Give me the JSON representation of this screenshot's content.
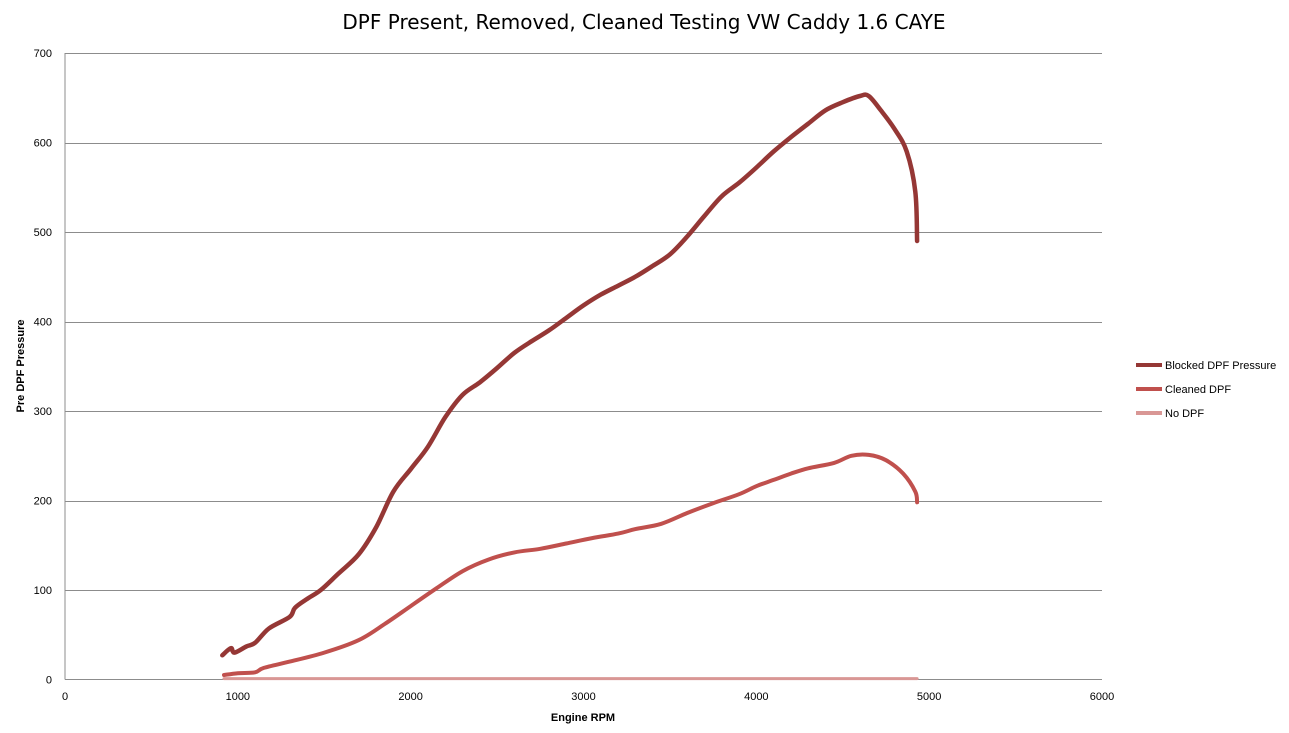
{
  "chart_data": {
    "type": "line",
    "title": "DPF Present, Removed, Cleaned Testing VW Caddy 1.6 CAYE",
    "xlabel": "Engine RPM",
    "ylabel": "Pre DPF Pressure",
    "xlim": [
      0,
      6000
    ],
    "ylim": [
      0,
      700
    ],
    "xticks": [
      0,
      1000,
      2000,
      3000,
      4000,
      5000,
      6000
    ],
    "yticks": [
      0,
      100,
      200,
      300,
      400,
      500,
      600,
      700
    ],
    "xtick_labels": [
      "0",
      "1000",
      "2000",
      "3000",
      "4000",
      "5000",
      "6000"
    ],
    "ytick_labels": [
      "0",
      "100",
      "200",
      "300",
      "400",
      "500",
      "600",
      "700"
    ],
    "grid": true,
    "legend_position": "right",
    "series": [
      {
        "name": "Blocked DPF Pressure",
        "color": "#953735",
        "points": [
          [
            910,
            27
          ],
          [
            960,
            35
          ],
          [
            980,
            30
          ],
          [
            1050,
            37
          ],
          [
            1100,
            41
          ],
          [
            1180,
            57
          ],
          [
            1300,
            70
          ],
          [
            1330,
            80
          ],
          [
            1400,
            90
          ],
          [
            1480,
            100
          ],
          [
            1580,
            118
          ],
          [
            1700,
            140
          ],
          [
            1800,
            170
          ],
          [
            1900,
            210
          ],
          [
            2000,
            235
          ],
          [
            2100,
            260
          ],
          [
            2200,
            293
          ],
          [
            2300,
            318
          ],
          [
            2400,
            332
          ],
          [
            2500,
            348
          ],
          [
            2600,
            365
          ],
          [
            2700,
            378
          ],
          [
            2800,
            390
          ],
          [
            2900,
            404
          ],
          [
            3000,
            418
          ],
          [
            3100,
            430
          ],
          [
            3200,
            440
          ],
          [
            3300,
            450
          ],
          [
            3400,
            462
          ],
          [
            3500,
            475
          ],
          [
            3600,
            495
          ],
          [
            3700,
            518
          ],
          [
            3800,
            540
          ],
          [
            3900,
            555
          ],
          [
            4000,
            572
          ],
          [
            4100,
            590
          ],
          [
            4200,
            606
          ],
          [
            4300,
            621
          ],
          [
            4400,
            636
          ],
          [
            4500,
            645
          ],
          [
            4600,
            652
          ],
          [
            4650,
            652
          ],
          [
            4720,
            636
          ],
          [
            4800,
            615
          ],
          [
            4870,
            590
          ],
          [
            4920,
            545
          ],
          [
            4930,
            490
          ]
        ]
      },
      {
        "name": "Cleaned DPF",
        "color": "#c0504d",
        "points": [
          [
            920,
            5
          ],
          [
            1000,
            7
          ],
          [
            1100,
            8
          ],
          [
            1150,
            13
          ],
          [
            1300,
            20
          ],
          [
            1500,
            30
          ],
          [
            1700,
            44
          ],
          [
            1850,
            62
          ],
          [
            2000,
            82
          ],
          [
            2150,
            102
          ],
          [
            2300,
            121
          ],
          [
            2450,
            134
          ],
          [
            2600,
            142
          ],
          [
            2750,
            146
          ],
          [
            2900,
            152
          ],
          [
            3050,
            158
          ],
          [
            3200,
            163
          ],
          [
            3300,
            168
          ],
          [
            3450,
            174
          ],
          [
            3600,
            186
          ],
          [
            3750,
            197
          ],
          [
            3900,
            207
          ],
          [
            4000,
            216
          ],
          [
            4100,
            223
          ],
          [
            4200,
            230
          ],
          [
            4300,
            236
          ],
          [
            4450,
            242
          ],
          [
            4550,
            250
          ],
          [
            4650,
            251
          ],
          [
            4750,
            245
          ],
          [
            4850,
            230
          ],
          [
            4920,
            210
          ],
          [
            4930,
            198
          ]
        ]
      },
      {
        "name": "No DPF",
        "color": "#d99795",
        "points": [
          [
            920,
            1
          ],
          [
            1500,
            1
          ],
          [
            2000,
            1
          ],
          [
            3000,
            1
          ],
          [
            4000,
            1
          ],
          [
            4930,
            1
          ]
        ]
      }
    ]
  }
}
